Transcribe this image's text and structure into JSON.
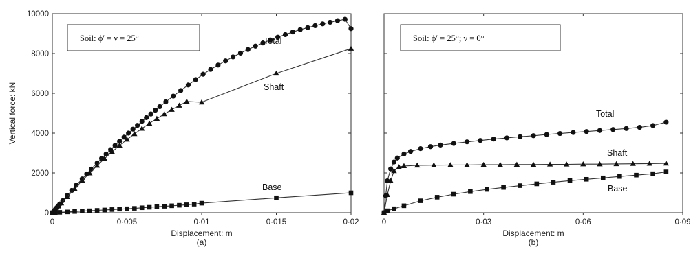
{
  "chart_data": [
    {
      "type": "line",
      "panel_label": "(a)",
      "annotation": "Soil: ϕ′ = ν = 25°",
      "xlabel": "Displacement: m",
      "ylabel": "Vertical force: kN",
      "xlim": [
        0,
        0.02
      ],
      "ylim": [
        0,
        10000
      ],
      "xticks": [
        0,
        0.005,
        0.01,
        0.015,
        0.02
      ],
      "xtick_labels": [
        "0",
        "0·005",
        "0·01",
        "0·015",
        "0·02"
      ],
      "yticks": [
        0,
        2000,
        4000,
        6000,
        8000,
        10000
      ],
      "ytick_labels": [
        "0",
        "2000",
        "4000",
        "6000",
        "8000",
        "10000"
      ],
      "grid": false,
      "series": [
        {
          "name": "Total",
          "marker": "circle",
          "x": [
            0,
            0.0001,
            0.0002,
            0.0003,
            0.0004,
            0.0005,
            0.0007,
            0.001,
            0.0013,
            0.0016,
            0.002,
            0.0023,
            0.0026,
            0.003,
            0.0033,
            0.0036,
            0.0039,
            0.0042,
            0.0045,
            0.0048,
            0.0051,
            0.0054,
            0.0057,
            0.006,
            0.0063,
            0.0066,
            0.0069,
            0.0072,
            0.0076,
            0.0081,
            0.0086,
            0.0091,
            0.0096,
            0.0101,
            0.0106,
            0.0111,
            0.0116,
            0.0121,
            0.0126,
            0.0131,
            0.0136,
            0.0141,
            0.0146,
            0.0151,
            0.0156,
            0.0161,
            0.0166,
            0.0171,
            0.0176,
            0.0181,
            0.0186,
            0.0191,
            0.0196,
            0.02
          ],
          "y": [
            0,
            80,
            170,
            260,
            350,
            440,
            610,
            870,
            1120,
            1380,
            1700,
            1950,
            2190,
            2500,
            2730,
            2950,
            3170,
            3380,
            3590,
            3800,
            4000,
            4200,
            4390,
            4590,
            4780,
            4960,
            5150,
            5330,
            5570,
            5860,
            6140,
            6420,
            6690,
            6960,
            7200,
            7420,
            7630,
            7830,
            8020,
            8200,
            8370,
            8530,
            8680,
            8820,
            8950,
            9080,
            9200,
            9300,
            9400,
            9490,
            9570,
            9650,
            9720,
            9250
          ]
        },
        {
          "name": "Shaft",
          "marker": "triangle",
          "x": [
            0,
            0.0001,
            0.0002,
            0.0004,
            0.0006,
            0.001,
            0.0015,
            0.002,
            0.0025,
            0.003,
            0.0035,
            0.004,
            0.0045,
            0.005,
            0.0055,
            0.006,
            0.0065,
            0.007,
            0.0075,
            0.008,
            0.0085,
            0.009,
            0.01,
            0.015,
            0.02
          ],
          "y": [
            0,
            80,
            160,
            330,
            480,
            800,
            1200,
            1620,
            1990,
            2370,
            2720,
            3060,
            3380,
            3680,
            3960,
            4230,
            4490,
            4730,
            4960,
            5180,
            5390,
            5590,
            5550,
            7000,
            8250
          ]
        },
        {
          "name": "Base",
          "marker": "square",
          "x": [
            0,
            0.0002,
            0.0005,
            0.001,
            0.0015,
            0.002,
            0.0025,
            0.003,
            0.0035,
            0.004,
            0.0045,
            0.005,
            0.0055,
            0.006,
            0.0065,
            0.007,
            0.0075,
            0.008,
            0.0085,
            0.009,
            0.0095,
            0.01,
            0.015,
            0.02
          ],
          "y": [
            0,
            10,
            20,
            40,
            60,
            80,
            100,
            120,
            140,
            160,
            180,
            200,
            220,
            250,
            275,
            300,
            325,
            350,
            375,
            400,
            430,
            480,
            750,
            1000
          ]
        }
      ]
    },
    {
      "type": "line",
      "panel_label": "(b)",
      "annotation": "Soil: ϕ′ = 25°;  ν = 0°",
      "xlabel": "Displacement: m",
      "ylabel": "",
      "xlim": [
        0,
        0.09
      ],
      "ylim": [
        0,
        10000
      ],
      "xticks": [
        0,
        0.03,
        0.06,
        0.09
      ],
      "xtick_labels": [
        "0",
        "0·03",
        "0·06",
        "0·09"
      ],
      "grid": false,
      "series": [
        {
          "name": "Total",
          "marker": "circle",
          "x": [
            0,
            0.0005,
            0.001,
            0.002,
            0.003,
            0.004,
            0.006,
            0.008,
            0.011,
            0.014,
            0.017,
            0.021,
            0.025,
            0.029,
            0.033,
            0.037,
            0.041,
            0.045,
            0.049,
            0.053,
            0.057,
            0.061,
            0.065,
            0.069,
            0.073,
            0.077,
            0.081,
            0.085
          ],
          "y": [
            0,
            850,
            1600,
            2200,
            2550,
            2750,
            2950,
            3080,
            3220,
            3320,
            3400,
            3480,
            3560,
            3630,
            3700,
            3760,
            3820,
            3870,
            3930,
            3980,
            4030,
            4080,
            4130,
            4180,
            4230,
            4290,
            4380,
            4550
          ]
        },
        {
          "name": "Shaft",
          "marker": "triangle",
          "x": [
            0,
            0.001,
            0.002,
            0.003,
            0.0045,
            0.006,
            0.01,
            0.015,
            0.02,
            0.025,
            0.03,
            0.035,
            0.04,
            0.045,
            0.05,
            0.055,
            0.06,
            0.065,
            0.07,
            0.075,
            0.08,
            0.085
          ],
          "y": [
            0,
            900,
            1600,
            2100,
            2300,
            2350,
            2380,
            2390,
            2400,
            2400,
            2410,
            2410,
            2420,
            2420,
            2430,
            2430,
            2440,
            2440,
            2450,
            2460,
            2470,
            2480
          ]
        },
        {
          "name": "Base",
          "marker": "square",
          "x": [
            0,
            0.001,
            0.003,
            0.006,
            0.011,
            0.016,
            0.021,
            0.026,
            0.031,
            0.036,
            0.041,
            0.046,
            0.051,
            0.056,
            0.061,
            0.066,
            0.071,
            0.076,
            0.081,
            0.085
          ],
          "y": [
            0,
            100,
            200,
            350,
            600,
            780,
            930,
            1060,
            1170,
            1270,
            1360,
            1450,
            1530,
            1610,
            1680,
            1750,
            1820,
            1890,
            1960,
            2050
          ]
        }
      ]
    }
  ]
}
